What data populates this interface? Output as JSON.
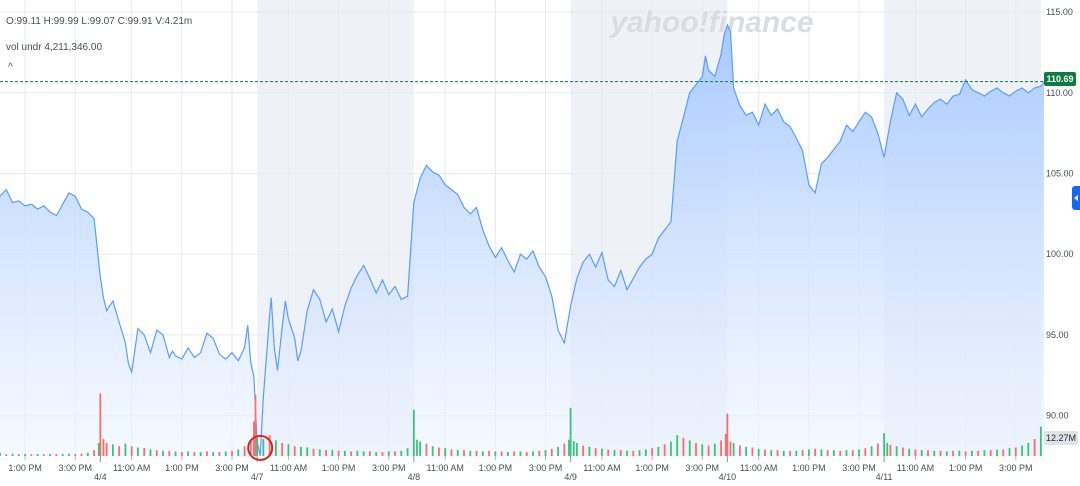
{
  "hud": {
    "ohlc": "O:99.11  H:99.99  L:99.07  C:99.91  V:4.21m",
    "volume_label": "vol undr  4,211,346.00",
    "collapse_glyph": "^"
  },
  "watermark": "yahoo!finance",
  "last_price_badge": "110.69",
  "volume_badge": "12.27M",
  "colors": {
    "price_line": "#5a9cff",
    "area_top": "#a6c9ff",
    "area_bottom": "#eef5ff",
    "volume_up": "#37c47a",
    "volume_down": "#ff6b6b",
    "last_price": "#0b7d3e",
    "grid": "#e7eaee",
    "session_shade": "#eef1f6",
    "marker": "#e02121"
  },
  "chart_data": {
    "type": "area",
    "y_ticks": [
      "115.00",
      "110.00",
      "105.00",
      "100.00",
      "95.00",
      "90.00"
    ],
    "y_tick_values": [
      115,
      110,
      105,
      100,
      95,
      90
    ],
    "ylim": [
      87.5,
      115.5
    ],
    "last_price": 110.69,
    "x_tick_labels": [
      "1:00 PM",
      "3:00 PM",
      "11:00 AM",
      "1:00 PM",
      "3:00 PM",
      "11:00 AM",
      "1:00 PM",
      "3:00 PM",
      "11:00 AM",
      "1:00 PM",
      "3:00 PM",
      "11:00 AM",
      "1:00 PM",
      "3:00 PM",
      "11:00 AM",
      "1:00 PM",
      "3:00 PM",
      "11:00 AM",
      "1:00 PM",
      "3:00 PM"
    ],
    "x_tick_index": [
      8,
      24,
      42,
      58,
      74,
      92,
      108,
      124,
      142,
      158,
      174,
      192,
      208,
      224,
      242,
      258,
      274,
      292,
      308,
      324
    ],
    "date_labels": [
      "4/4",
      "4/7",
      "4/8",
      "4/9",
      "4/10",
      "4/11"
    ],
    "date_index": [
      32,
      82,
      132,
      182,
      232,
      282
    ],
    "shaded_sessions": [
      [
        82,
        132
      ],
      [
        182,
        232
      ],
      [
        282,
        332
      ]
    ],
    "index_range": [
      0,
      333
    ],
    "prices": [
      [
        0,
        103.6
      ],
      [
        2,
        104.0
      ],
      [
        4,
        103.2
      ],
      [
        6,
        103.3
      ],
      [
        8,
        103.0
      ],
      [
        10,
        103.1
      ],
      [
        12,
        102.8
      ],
      [
        14,
        103.0
      ],
      [
        16,
        102.6
      ],
      [
        18,
        102.4
      ],
      [
        20,
        103.1
      ],
      [
        22,
        103.8
      ],
      [
        24,
        103.6
      ],
      [
        26,
        102.8
      ],
      [
        28,
        102.6
      ],
      [
        30,
        102.2
      ],
      [
        32,
        98.6
      ],
      [
        33,
        97.3
      ],
      [
        34,
        96.5
      ],
      [
        36,
        97.1
      ],
      [
        38,
        95.8
      ],
      [
        40,
        94.5
      ],
      [
        41,
        93.2
      ],
      [
        42,
        92.7
      ],
      [
        44,
        95.4
      ],
      [
        46,
        95.0
      ],
      [
        48,
        93.9
      ],
      [
        50,
        95.3
      ],
      [
        52,
        95.0
      ],
      [
        54,
        93.6
      ],
      [
        55,
        94.0
      ],
      [
        56,
        93.7
      ],
      [
        58,
        93.5
      ],
      [
        60,
        94.2
      ],
      [
        62,
        93.6
      ],
      [
        64,
        93.9
      ],
      [
        66,
        95.1
      ],
      [
        68,
        94.8
      ],
      [
        70,
        93.8
      ],
      [
        72,
        93.5
      ],
      [
        74,
        93.9
      ],
      [
        76,
        93.4
      ],
      [
        78,
        94.2
      ],
      [
        79,
        95.6
      ],
      [
        80,
        93.3
      ],
      [
        81,
        92.4
      ],
      [
        82,
        88.4
      ],
      [
        83,
        87.5
      ],
      [
        84,
        91.2
      ],
      [
        86,
        96.2
      ],
      [
        86.5,
        97.3
      ],
      [
        87.5,
        94.2
      ],
      [
        88.5,
        92.8
      ],
      [
        90,
        95.5
      ],
      [
        91,
        97.1
      ],
      [
        92,
        96.0
      ],
      [
        94,
        94.8
      ],
      [
        95,
        93.4
      ],
      [
        96,
        94.0
      ],
      [
        98,
        96.5
      ],
      [
        100,
        97.8
      ],
      [
        102,
        97.2
      ],
      [
        104,
        95.8
      ],
      [
        106,
        96.6
      ],
      [
        108,
        95.2
      ],
      [
        110,
        96.8
      ],
      [
        112,
        97.9
      ],
      [
        114,
        98.7
      ],
      [
        116,
        99.3
      ],
      [
        118,
        98.5
      ],
      [
        120,
        97.6
      ],
      [
        122,
        98.4
      ],
      [
        124,
        97.5
      ],
      [
        126,
        98.0
      ],
      [
        128,
        97.2
      ],
      [
        130,
        97.4
      ],
      [
        132,
        103.2
      ],
      [
        134,
        104.7
      ],
      [
        136,
        105.5
      ],
      [
        138,
        105.1
      ],
      [
        140,
        104.9
      ],
      [
        142,
        104.3
      ],
      [
        144,
        104.0
      ],
      [
        146,
        103.7
      ],
      [
        148,
        102.9
      ],
      [
        150,
        102.5
      ],
      [
        152,
        102.9
      ],
      [
        154,
        101.5
      ],
      [
        156,
        100.5
      ],
      [
        158,
        99.8
      ],
      [
        160,
        100.4
      ],
      [
        162,
        99.6
      ],
      [
        164,
        98.9
      ],
      [
        166,
        100.0
      ],
      [
        168,
        99.7
      ],
      [
        170,
        100.2
      ],
      [
        172,
        99.2
      ],
      [
        174,
        98.6
      ],
      [
        176,
        97.4
      ],
      [
        178,
        95.3
      ],
      [
        180,
        94.5
      ],
      [
        182,
        96.8
      ],
      [
        184,
        98.5
      ],
      [
        186,
        99.5
      ],
      [
        188,
        100.0
      ],
      [
        190,
        99.2
      ],
      [
        192,
        100.1
      ],
      [
        194,
        98.4
      ],
      [
        196,
        98.0
      ],
      [
        198,
        99.0
      ],
      [
        200,
        97.8
      ],
      [
        202,
        98.5
      ],
      [
        204,
        99.2
      ],
      [
        206,
        99.7
      ],
      [
        208,
        100.0
      ],
      [
        210,
        101.0
      ],
      [
        212,
        101.5
      ],
      [
        214,
        102.0
      ],
      [
        216,
        107.0
      ],
      [
        218,
        108.5
      ],
      [
        220,
        110.0
      ],
      [
        222,
        110.5
      ],
      [
        224,
        111.0
      ],
      [
        225,
        112.3
      ],
      [
        226,
        111.4
      ],
      [
        228,
        111.0
      ],
      [
        230,
        112.4
      ],
      [
        231,
        113.6
      ],
      [
        232,
        114.2
      ],
      [
        233,
        113.8
      ],
      [
        234,
        110.3
      ],
      [
        236,
        109.2
      ],
      [
        238,
        108.6
      ],
      [
        240,
        108.8
      ],
      [
        242,
        108.0
      ],
      [
        244,
        109.3
      ],
      [
        246,
        108.6
      ],
      [
        248,
        109.0
      ],
      [
        250,
        108.2
      ],
      [
        252,
        107.9
      ],
      [
        254,
        107.2
      ],
      [
        256,
        106.4
      ],
      [
        258,
        104.3
      ],
      [
        260,
        103.8
      ],
      [
        262,
        105.6
      ],
      [
        264,
        106.0
      ],
      [
        266,
        106.5
      ],
      [
        268,
        107.0
      ],
      [
        270,
        108.0
      ],
      [
        272,
        107.6
      ],
      [
        274,
        108.2
      ],
      [
        276,
        108.8
      ],
      [
        278,
        108.5
      ],
      [
        280,
        107.5
      ],
      [
        282,
        106.0
      ],
      [
        284,
        108.2
      ],
      [
        286,
        110.0
      ],
      [
        288,
        109.6
      ],
      [
        290,
        108.6
      ],
      [
        292,
        109.3
      ],
      [
        294,
        108.5
      ],
      [
        296,
        109.0
      ],
      [
        298,
        109.4
      ],
      [
        300,
        109.6
      ],
      [
        302,
        109.3
      ],
      [
        304,
        109.8
      ],
      [
        306,
        109.9
      ],
      [
        308,
        110.8
      ],
      [
        310,
        110.2
      ],
      [
        312,
        110.0
      ],
      [
        314,
        109.8
      ],
      [
        316,
        110.1
      ],
      [
        318,
        110.3
      ],
      [
        320,
        110.0
      ],
      [
        322,
        109.8
      ],
      [
        324,
        110.1
      ],
      [
        326,
        110.3
      ],
      [
        328,
        110.0
      ],
      [
        330,
        110.3
      ],
      [
        332,
        110.4
      ],
      [
        333,
        110.69
      ]
    ],
    "volume_scale_max": 12.27,
    "volume": [
      [
        0,
        0.5,
        "u"
      ],
      [
        2,
        0.3,
        "d"
      ],
      [
        4,
        0.35,
        "u"
      ],
      [
        6,
        0.3,
        "d"
      ],
      [
        8,
        0.3,
        "u"
      ],
      [
        10,
        0.25,
        "d"
      ],
      [
        12,
        0.3,
        "u"
      ],
      [
        14,
        0.28,
        "d"
      ],
      [
        16,
        0.3,
        "u"
      ],
      [
        18,
        0.3,
        "d"
      ],
      [
        20,
        0.32,
        "u"
      ],
      [
        22,
        0.35,
        "u"
      ],
      [
        24,
        0.3,
        "d"
      ],
      [
        26,
        0.35,
        "d"
      ],
      [
        28,
        0.5,
        "u"
      ],
      [
        30,
        0.9,
        "d"
      ],
      [
        31.5,
        2.0,
        "u"
      ],
      [
        32,
        9.6,
        "d"
      ],
      [
        33,
        2.6,
        "d"
      ],
      [
        34,
        2.0,
        "d"
      ],
      [
        36,
        1.8,
        "u"
      ],
      [
        38,
        1.5,
        "d"
      ],
      [
        40,
        1.9,
        "u"
      ],
      [
        42,
        1.5,
        "d"
      ],
      [
        44,
        1.3,
        "u"
      ],
      [
        46,
        1.2,
        "d"
      ],
      [
        48,
        1.0,
        "u"
      ],
      [
        50,
        0.9,
        "d"
      ],
      [
        52,
        0.8,
        "u"
      ],
      [
        54,
        0.8,
        "d"
      ],
      [
        56,
        0.7,
        "u"
      ],
      [
        58,
        0.6,
        "d"
      ],
      [
        60,
        0.7,
        "u"
      ],
      [
        62,
        0.6,
        "d"
      ],
      [
        64,
        0.6,
        "u"
      ],
      [
        66,
        0.7,
        "d"
      ],
      [
        68,
        0.6,
        "u"
      ],
      [
        70,
        0.6,
        "d"
      ],
      [
        72,
        0.7,
        "u"
      ],
      [
        74,
        0.8,
        "d"
      ],
      [
        76,
        1.0,
        "u"
      ],
      [
        78,
        1.5,
        "d"
      ],
      [
        80,
        2.2,
        "d"
      ],
      [
        81,
        5.3,
        "d"
      ],
      [
        81.5,
        9.4,
        "d"
      ],
      [
        82,
        2.8,
        "u"
      ],
      [
        84,
        2.6,
        "u"
      ],
      [
        86,
        3.2,
        "d"
      ],
      [
        88,
        2.4,
        "u"
      ],
      [
        90,
        2.0,
        "d"
      ],
      [
        92,
        1.8,
        "u"
      ],
      [
        94,
        1.5,
        "d"
      ],
      [
        96,
        1.4,
        "u"
      ],
      [
        98,
        1.3,
        "u"
      ],
      [
        100,
        1.1,
        "d"
      ],
      [
        102,
        1.0,
        "u"
      ],
      [
        104,
        0.9,
        "d"
      ],
      [
        106,
        0.9,
        "u"
      ],
      [
        108,
        0.8,
        "d"
      ],
      [
        110,
        0.8,
        "u"
      ],
      [
        112,
        0.7,
        "d"
      ],
      [
        114,
        0.8,
        "u"
      ],
      [
        116,
        0.7,
        "u"
      ],
      [
        118,
        0.7,
        "d"
      ],
      [
        120,
        0.6,
        "u"
      ],
      [
        122,
        0.6,
        "d"
      ],
      [
        124,
        0.7,
        "u"
      ],
      [
        126,
        0.7,
        "d"
      ],
      [
        128,
        0.8,
        "u"
      ],
      [
        130,
        1.2,
        "u"
      ],
      [
        132,
        7.1,
        "u"
      ],
      [
        133,
        2.5,
        "u"
      ],
      [
        134,
        2.2,
        "u"
      ],
      [
        136,
        1.9,
        "d"
      ],
      [
        138,
        1.5,
        "u"
      ],
      [
        140,
        1.3,
        "d"
      ],
      [
        142,
        1.2,
        "u"
      ],
      [
        144,
        1.0,
        "d"
      ],
      [
        146,
        0.9,
        "u"
      ],
      [
        148,
        0.9,
        "d"
      ],
      [
        150,
        0.8,
        "u"
      ],
      [
        152,
        0.8,
        "d"
      ],
      [
        154,
        0.7,
        "u"
      ],
      [
        156,
        0.8,
        "d"
      ],
      [
        158,
        0.7,
        "u"
      ],
      [
        160,
        0.7,
        "d"
      ],
      [
        162,
        0.6,
        "u"
      ],
      [
        164,
        0.7,
        "d"
      ],
      [
        166,
        0.7,
        "u"
      ],
      [
        168,
        0.6,
        "d"
      ],
      [
        170,
        0.7,
        "u"
      ],
      [
        172,
        0.8,
        "d"
      ],
      [
        174,
        0.9,
        "u"
      ],
      [
        176,
        1.1,
        "d"
      ],
      [
        178,
        1.4,
        "u"
      ],
      [
        180,
        1.9,
        "d"
      ],
      [
        181.5,
        2.5,
        "u"
      ],
      [
        182,
        7.4,
        "u"
      ],
      [
        183,
        2.3,
        "u"
      ],
      [
        184,
        2.0,
        "u"
      ],
      [
        186,
        1.6,
        "d"
      ],
      [
        188,
        1.4,
        "u"
      ],
      [
        190,
        1.2,
        "d"
      ],
      [
        192,
        1.1,
        "u"
      ],
      [
        194,
        1.0,
        "d"
      ],
      [
        196,
        0.9,
        "u"
      ],
      [
        198,
        0.9,
        "d"
      ],
      [
        200,
        0.8,
        "u"
      ],
      [
        202,
        0.8,
        "d"
      ],
      [
        204,
        0.9,
        "u"
      ],
      [
        206,
        1.0,
        "u"
      ],
      [
        208,
        1.2,
        "d"
      ],
      [
        210,
        1.4,
        "u"
      ],
      [
        212,
        1.8,
        "d"
      ],
      [
        214,
        2.2,
        "u"
      ],
      [
        216,
        3.2,
        "u"
      ],
      [
        218,
        2.8,
        "d"
      ],
      [
        220,
        2.4,
        "u"
      ],
      [
        222,
        2.0,
        "d"
      ],
      [
        224,
        1.8,
        "u"
      ],
      [
        226,
        1.6,
        "d"
      ],
      [
        228,
        1.9,
        "u"
      ],
      [
        230,
        2.4,
        "d"
      ],
      [
        231.5,
        3.4,
        "d"
      ],
      [
        232,
        6.5,
        "d"
      ],
      [
        233,
        2.2,
        "d"
      ],
      [
        234,
        2.0,
        "u"
      ],
      [
        236,
        1.6,
        "d"
      ],
      [
        238,
        1.4,
        "u"
      ],
      [
        240,
        1.3,
        "d"
      ],
      [
        242,
        1.1,
        "u"
      ],
      [
        244,
        1.0,
        "d"
      ],
      [
        246,
        0.9,
        "u"
      ],
      [
        248,
        0.9,
        "d"
      ],
      [
        250,
        0.8,
        "u"
      ],
      [
        252,
        0.8,
        "d"
      ],
      [
        254,
        0.8,
        "u"
      ],
      [
        256,
        0.9,
        "d"
      ],
      [
        258,
        1.0,
        "u"
      ],
      [
        260,
        1.1,
        "d"
      ],
      [
        262,
        1.0,
        "u"
      ],
      [
        264,
        0.9,
        "d"
      ],
      [
        266,
        0.9,
        "u"
      ],
      [
        268,
        0.8,
        "d"
      ],
      [
        270,
        0.9,
        "u"
      ],
      [
        272,
        0.9,
        "d"
      ],
      [
        274,
        1.0,
        "u"
      ],
      [
        276,
        1.2,
        "d"
      ],
      [
        278,
        1.5,
        "u"
      ],
      [
        280,
        1.9,
        "d"
      ],
      [
        282,
        3.5,
        "u"
      ],
      [
        283,
        2.0,
        "u"
      ],
      [
        284,
        1.7,
        "d"
      ],
      [
        286,
        1.5,
        "u"
      ],
      [
        288,
        1.3,
        "d"
      ],
      [
        290,
        1.1,
        "u"
      ],
      [
        292,
        1.0,
        "d"
      ],
      [
        294,
        0.9,
        "u"
      ],
      [
        296,
        0.9,
        "d"
      ],
      [
        298,
        0.8,
        "u"
      ],
      [
        300,
        0.8,
        "d"
      ],
      [
        302,
        0.7,
        "u"
      ],
      [
        304,
        0.8,
        "d"
      ],
      [
        306,
        0.8,
        "u"
      ],
      [
        308,
        0.7,
        "d"
      ],
      [
        310,
        0.8,
        "u"
      ],
      [
        312,
        0.8,
        "d"
      ],
      [
        314,
        0.9,
        "u"
      ],
      [
        316,
        0.9,
        "d"
      ],
      [
        318,
        1.0,
        "u"
      ],
      [
        320,
        1.0,
        "d"
      ],
      [
        322,
        1.2,
        "u"
      ],
      [
        324,
        1.3,
        "d"
      ],
      [
        326,
        1.6,
        "u"
      ],
      [
        328,
        2.0,
        "u"
      ],
      [
        330,
        2.6,
        "d"
      ],
      [
        332,
        4.5,
        "u"
      ]
    ],
    "marker": {
      "index": 83,
      "price": 88.0
    }
  }
}
